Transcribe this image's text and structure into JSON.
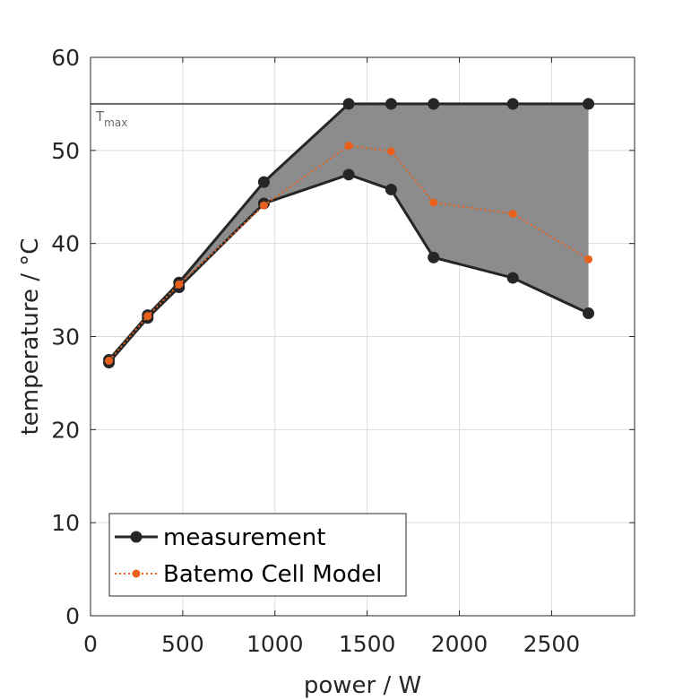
{
  "chart_data": {
    "type": "line",
    "xlabel": "power / W",
    "ylabel": "temperature / °C",
    "xlim": [
      0,
      2950
    ],
    "ylim": [
      0,
      60
    ],
    "xticks": [
      0,
      500,
      1000,
      1500,
      2000,
      2500
    ],
    "yticks": [
      0,
      10,
      20,
      30,
      40,
      50,
      60
    ],
    "xtick_labels": [
      "0",
      "500",
      "1000",
      "1500",
      "2000",
      "2500"
    ],
    "ytick_labels": [
      "0",
      "10",
      "20",
      "30",
      "40",
      "50",
      "60"
    ],
    "grid": true,
    "reference_line": {
      "y": 55,
      "label_main": "T",
      "label_sub": "max",
      "color": "#666666"
    },
    "band": {
      "x": [
        100,
        310,
        480,
        940,
        1400,
        1630,
        1860,
        2290,
        2700
      ],
      "upper": [
        27.5,
        32.3,
        35.8,
        46.6,
        55.0,
        55.0,
        55.0,
        55.0,
        55.0
      ],
      "lower": [
        27.2,
        32.0,
        35.3,
        44.3,
        47.4,
        45.8,
        38.5,
        36.3,
        32.5
      ],
      "color": "#8c8c8c"
    },
    "series": [
      {
        "name": "measurement upper",
        "color": "#262626",
        "x": [
          100,
          310,
          480,
          940,
          1400,
          1630,
          1860,
          2290,
          2700
        ],
        "y": [
          27.5,
          32.3,
          35.8,
          46.6,
          55.0,
          55.0,
          55.0,
          55.0,
          55.0
        ]
      },
      {
        "name": "measurement lower",
        "color": "#262626",
        "x": [
          100,
          310,
          480,
          940,
          1400,
          1630,
          1860,
          2290,
          2700
        ],
        "y": [
          27.2,
          32.0,
          35.3,
          44.3,
          47.4,
          45.8,
          38.5,
          36.3,
          32.5
        ]
      },
      {
        "name": "Batemo Cell Model",
        "color": "#e8601c",
        "x": [
          100,
          310,
          480,
          940,
          1400,
          1630,
          1860,
          2290,
          2700
        ],
        "y": [
          27.4,
          32.2,
          35.6,
          44.1,
          50.5,
          49.9,
          44.4,
          43.2,
          38.3
        ]
      }
    ],
    "legend": {
      "position": "bottom-left",
      "entries": [
        {
          "label": "measurement",
          "color": "#262626",
          "style": "solid"
        },
        {
          "label": "Batemo Cell Model",
          "color": "#e8601c",
          "style": "dotted"
        }
      ]
    }
  }
}
